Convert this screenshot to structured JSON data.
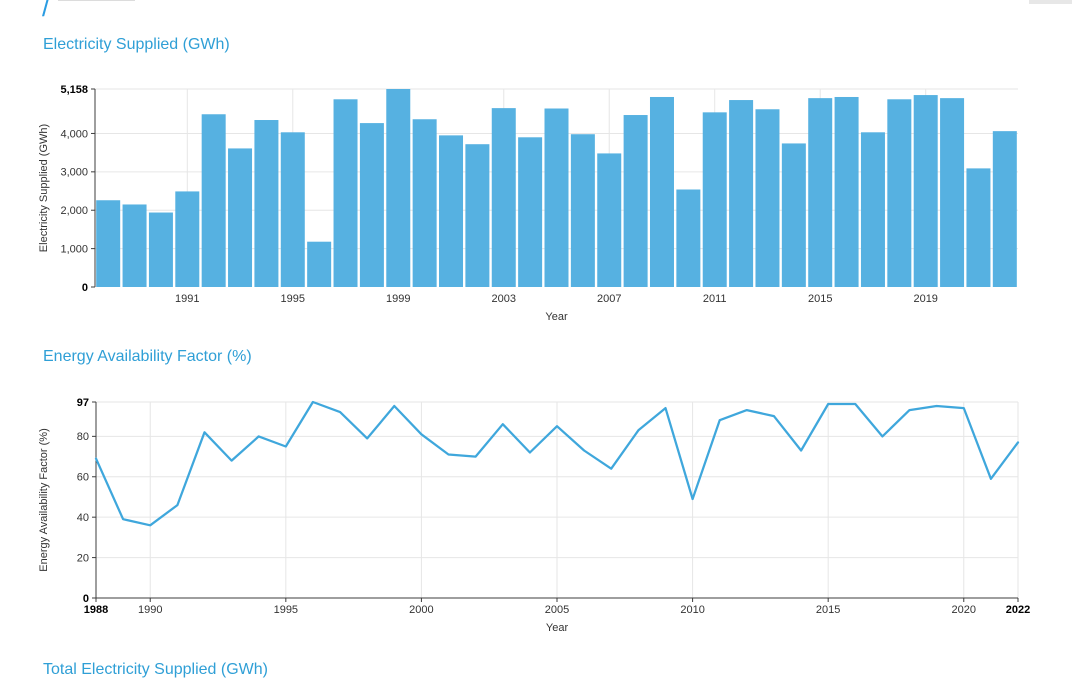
{
  "page": {
    "breadcrumb": "/",
    "section_titles": [
      "Electricity Supplied (GWh)",
      "Energy Availability Factor (%)",
      "Total Electricity Supplied (GWh)"
    ]
  },
  "colors": {
    "heading": "#2f9fd6",
    "breadcrumb": "#2a9ce2",
    "bar": "#56b1e1",
    "line": "#3fa7dc",
    "grid": "#e6e6e6",
    "axis": "#3c3c3c",
    "tick_text": "#333333",
    "bold_text": "#000000"
  },
  "chart_data": [
    {
      "type": "bar",
      "title": "Electricity Supplied (GWh)",
      "xlabel": "Year",
      "ylabel": "Electricity Supplied (GWh)",
      "ylim": [
        0,
        5158
      ],
      "grid": true,
      "yticks": [
        0,
        1000,
        2000,
        3000,
        4000,
        5158
      ],
      "ytick_labels": [
        "0",
        "1,000",
        "2,000",
        "3,000",
        "4,000",
        "5,158"
      ],
      "bold_yticks": [
        0,
        5158
      ],
      "xticks": [
        1991,
        1995,
        1999,
        2003,
        2007,
        2011,
        2015,
        2019
      ],
      "bold_xticks": [],
      "categories": [
        1988,
        1989,
        1990,
        1991,
        1992,
        1993,
        1994,
        1995,
        1996,
        1997,
        1998,
        1999,
        2000,
        2001,
        2002,
        2003,
        2004,
        2005,
        2006,
        2007,
        2008,
        2009,
        2010,
        2011,
        2012,
        2013,
        2014,
        2015,
        2016,
        2017,
        2018,
        2019,
        2020,
        2021,
        2022
      ],
      "values": [
        2260,
        2150,
        1940,
        2490,
        4500,
        3610,
        4350,
        4030,
        1180,
        4890,
        4270,
        5158,
        4370,
        3950,
        3720,
        4660,
        3900,
        4650,
        3980,
        3480,
        4480,
        4950,
        2540,
        4550,
        4870,
        4630,
        3740,
        4920,
        4950,
        4030,
        4890,
        5000,
        4920,
        3090,
        4060
      ]
    },
    {
      "type": "line",
      "title": "Energy Availability Factor (%)",
      "xlabel": "Year",
      "ylabel": "Energy Availability Factor (%)",
      "ylim": [
        0,
        97
      ],
      "grid": true,
      "yticks": [
        0,
        20,
        40,
        60,
        80,
        97
      ],
      "ytick_labels": [
        "0",
        "20",
        "40",
        "60",
        "80",
        "97"
      ],
      "bold_yticks": [
        0,
        97
      ],
      "xticks": [
        1988,
        1990,
        1995,
        2000,
        2005,
        2010,
        2015,
        2020,
        2022
      ],
      "bold_xticks": [
        1988,
        2022
      ],
      "x": [
        1988,
        1989,
        1990,
        1991,
        1992,
        1993,
        1994,
        1995,
        1996,
        1997,
        1998,
        1999,
        2000,
        2001,
        2002,
        2003,
        2004,
        2005,
        2006,
        2007,
        2008,
        2009,
        2010,
        2011,
        2012,
        2013,
        2014,
        2015,
        2016,
        2017,
        2018,
        2019,
        2020,
        2021,
        2022
      ],
      "values": [
        69,
        39,
        36,
        46,
        82,
        68,
        80,
        75,
        97,
        92,
        79,
        95,
        81,
        71,
        70,
        86,
        72,
        85,
        73,
        64,
        83,
        94,
        49,
        88,
        93,
        90,
        73,
        96,
        96,
        80,
        93,
        95,
        94,
        59,
        77
      ]
    }
  ]
}
